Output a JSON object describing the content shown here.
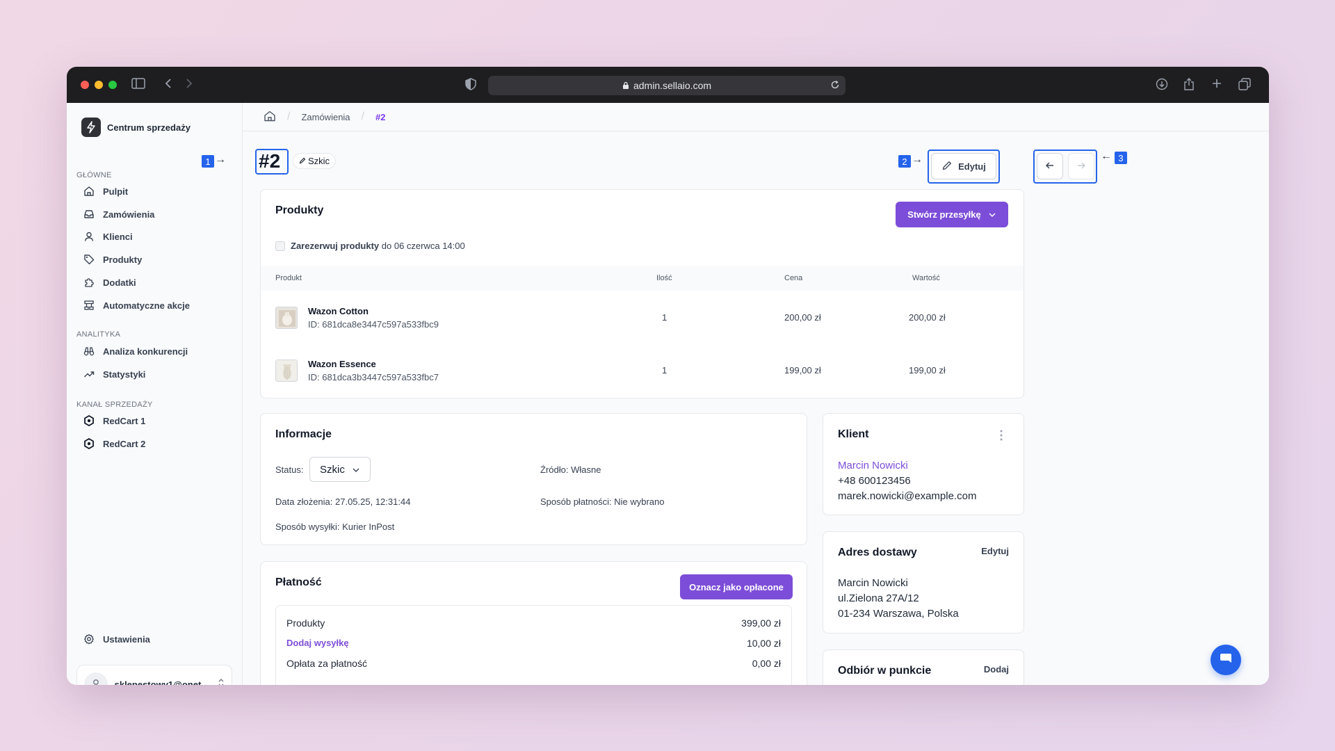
{
  "browser": {
    "url": "admin.sellaio.com",
    "traffic_colors": [
      "#ff5f57",
      "#febc2e",
      "#28c840"
    ]
  },
  "sidebar": {
    "brand": "Centrum sprzedaży",
    "sections": {
      "main": "GŁÓWNE",
      "analytics": "ANALITYKA",
      "channels": "KANAŁ SPRZEDAŻY"
    },
    "items": [
      {
        "label": "Pulpit",
        "icon": "home-icon"
      },
      {
        "label": "Zamówienia",
        "icon": "inbox-icon"
      },
      {
        "label": "Klienci",
        "icon": "user-icon"
      },
      {
        "label": "Produkty",
        "icon": "tag-icon"
      },
      {
        "label": "Dodatki",
        "icon": "puzzle-icon"
      },
      {
        "label": "Automatyczne akcje",
        "icon": "workflow-icon"
      },
      {
        "label": "Analiza konkurencji",
        "icon": "binoculars-icon"
      },
      {
        "label": "Statystyki",
        "icon": "trend-up-icon"
      },
      {
        "label": "RedCart 1",
        "icon": "hexagon-icon"
      },
      {
        "label": "RedCart 2",
        "icon": "hexagon-icon"
      }
    ],
    "settings": "Ustawienia",
    "user_email": "sklepestowy1@onet..."
  },
  "breadcrumb": {
    "items": [
      "Zamówienia",
      "#2"
    ]
  },
  "annotations": [
    "1",
    "2",
    "3"
  ],
  "order": {
    "number": "#2",
    "status_badge": "Szkic",
    "edit_label": "Edytuj"
  },
  "products": {
    "title": "Produkty",
    "create_shipment": "Stwórz przesyłkę",
    "reserve_label": "Zarezerwuj produkty",
    "reserve_until": "do 06 czerwca 14:00",
    "columns": [
      "Produkt",
      "Ilość",
      "Cena",
      "Wartość"
    ],
    "rows": [
      {
        "name": "Wazon Cotton",
        "id": "ID: 681dca8e3447c597a533fbc9",
        "qty": "1",
        "price": "200,00 zł",
        "value": "200,00 zł"
      },
      {
        "name": "Wazon Essence",
        "id": "ID: 681dca3b3447c597a533fbc7",
        "qty": "1",
        "price": "199,00 zł",
        "value": "199,00 zł"
      }
    ]
  },
  "info": {
    "title": "Informacje",
    "status_label": "Status:",
    "status_value": "Szkic",
    "source": "Źródło: Własne",
    "date": "Data złożenia: 27.05.25, 12:31:44",
    "payment_method": "Sposób płatności: Nie wybrano",
    "shipping_method": "Sposób wysyłki: Kurier InPost"
  },
  "payment": {
    "title": "Płatność",
    "mark_paid": "Oznacz jako opłacone",
    "rows": [
      {
        "label": "Produkty",
        "value": "399,00 zł"
      },
      {
        "label": "Dodaj wysyłkę",
        "value": "10,00 zł"
      },
      {
        "label": "Opłata za płatność",
        "value": "0,00 zł"
      }
    ]
  },
  "client": {
    "title": "Klient",
    "name": "Marcin Nowicki",
    "phone": "+48 600123456",
    "email": "marek.nowicki@example.com"
  },
  "delivery": {
    "title": "Adres dostawy",
    "edit": "Edytuj",
    "name": "Marcin Nowicki",
    "street": "ul.Zielona 27A/12",
    "city": "01-234 Warszawa, Polska"
  },
  "pickup": {
    "title": "Odbiór w punkcie",
    "add": "Dodaj"
  },
  "colors": {
    "accent": "#7c4dd8",
    "annotation": "#2563eb"
  }
}
